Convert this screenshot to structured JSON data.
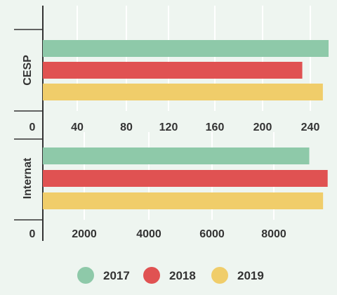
{
  "chart_data": [
    {
      "type": "bar",
      "orientation": "horizontal",
      "category": "CESP",
      "series": [
        {
          "name": "2017",
          "value": 250
        },
        {
          "name": "2018",
          "value": 227
        },
        {
          "name": "2019",
          "value": 245
        }
      ],
      "xlim": [
        0,
        250
      ],
      "xticks": [
        "0",
        "40",
        "80",
        "120",
        "160",
        "200",
        "240"
      ],
      "grid": true
    },
    {
      "type": "bar",
      "orientation": "horizontal",
      "category": "Internat",
      "series": [
        {
          "name": "2017",
          "value": 8700
        },
        {
          "name": "2018",
          "value": 9300
        },
        {
          "name": "2019",
          "value": 9150
        }
      ],
      "xlim": [
        0,
        9330
      ],
      "xticks": [
        "0",
        "2000",
        "4000",
        "6000",
        "8000"
      ],
      "grid": true
    }
  ],
  "legend": {
    "placement": "bottom",
    "items": [
      {
        "label": "2017",
        "color": "#8ec9a9"
      },
      {
        "label": "2018",
        "color": "#e05252"
      },
      {
        "label": "2019",
        "color": "#f0cd6a"
      }
    ]
  },
  "colors": {
    "background": "#eef5f0",
    "grid": "#ffffff",
    "axis": "#333333"
  }
}
